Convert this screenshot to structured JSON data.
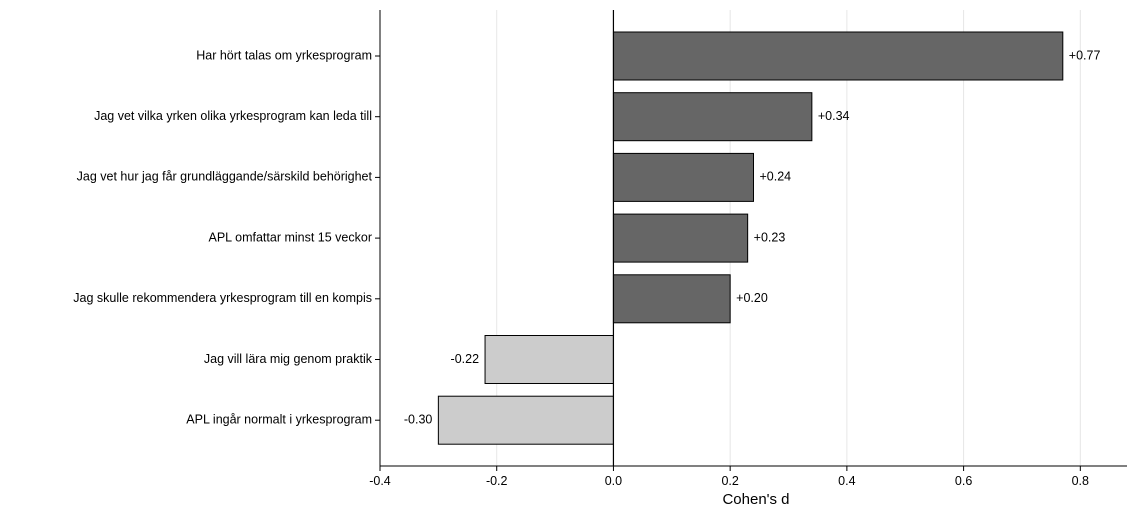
{
  "chart_data": {
    "type": "bar",
    "orientation": "horizontal",
    "title": "",
    "xlabel": "Cohen's d",
    "ylabel": "",
    "xlim": [
      -0.4,
      0.88
    ],
    "xticks": [
      -0.4,
      -0.2,
      0.0,
      0.2,
      0.4,
      0.6,
      0.8
    ],
    "xtick_labels": [
      "-0.4",
      "-0.2",
      "0.0",
      "0.2",
      "0.4",
      "0.6",
      "0.8"
    ],
    "grid": "vertical",
    "categories": [
      "Har hört talas om yrkesprogram",
      "Jag vet vilka yrken olika yrkesprogram kan leda till",
      "Jag vet hur jag får grundläggande/särskild behörighet",
      "APL omfattar minst 15 veckor",
      "Jag skulle rekommendera yrkesprogram till en kompis",
      "Jag vill lära mig genom praktik",
      "APL ingår normalt i yrkesprogram"
    ],
    "values": [
      0.77,
      0.34,
      0.24,
      0.23,
      0.2,
      -0.22,
      -0.3
    ],
    "value_labels": [
      "+0.77",
      "+0.34",
      "+0.24",
      "+0.23",
      "+0.20",
      "-0.22",
      "-0.30"
    ],
    "colors": {
      "positive": "#666666",
      "negative": "#cccccc",
      "edge": "#000000",
      "grid": "#e6e6e6"
    }
  }
}
